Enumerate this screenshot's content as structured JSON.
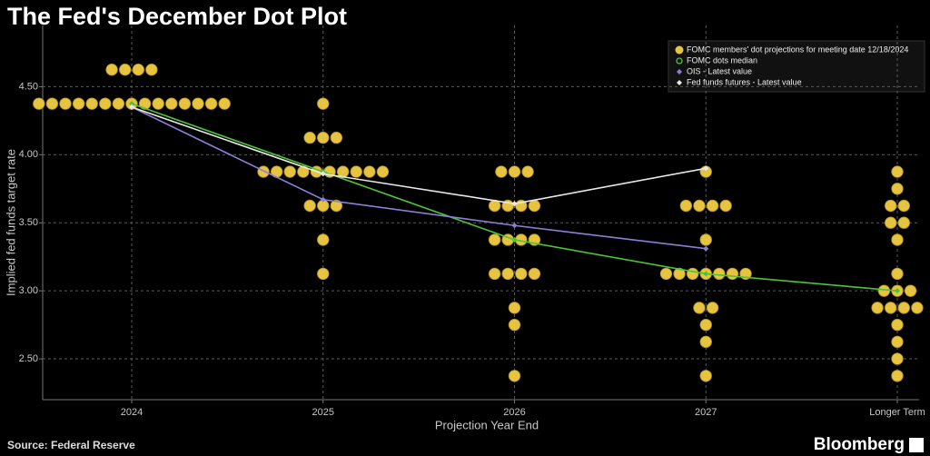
{
  "chart_data": {
    "type": "dot-plot",
    "title": "The Fed's December Dot Plot",
    "x_label": "Projection Year End",
    "y_label": "Implied fed funds target rate",
    "source": "Source: Federal Reserve",
    "brand": "Bloomberg",
    "categories": [
      "2024",
      "2025",
      "2026",
      "2027",
      "Longer Term"
    ],
    "ylim": [
      2.2,
      4.95
    ],
    "yticks": [
      {
        "value": 2.5,
        "label": "2.50"
      },
      {
        "value": 3,
        "label": "3.00"
      },
      {
        "value": 3.5,
        "label": "3.50"
      },
      {
        "value": 4,
        "label": "4.00"
      },
      {
        "value": 4.5,
        "label": "4.50"
      }
    ],
    "grid": true,
    "legend": "top-right",
    "dots": {
      "name": "FOMC members' dot projections for meeting date 12/18/2024",
      "color": "#e6c440",
      "points": [
        {
          "category": "2024",
          "rate": 4.625,
          "count": 4
        },
        {
          "category": "2024",
          "rate": 4.375,
          "count": 15
        },
        {
          "category": "2025",
          "rate": 4.375,
          "count": 1
        },
        {
          "category": "2025",
          "rate": 4.125,
          "count": 3
        },
        {
          "category": "2025",
          "rate": 3.875,
          "count": 10
        },
        {
          "category": "2025",
          "rate": 3.625,
          "count": 3
        },
        {
          "category": "2025",
          "rate": 3.375,
          "count": 1
        },
        {
          "category": "2025",
          "rate": 3.125,
          "count": 1
        },
        {
          "category": "2026",
          "rate": 3.875,
          "count": 3
        },
        {
          "category": "2026",
          "rate": 3.625,
          "count": 4
        },
        {
          "category": "2026",
          "rate": 3.375,
          "count": 4
        },
        {
          "category": "2026",
          "rate": 3.125,
          "count": 4
        },
        {
          "category": "2026",
          "rate": 2.875,
          "count": 1
        },
        {
          "category": "2026",
          "rate": 2.75,
          "count": 1
        },
        {
          "category": "2026",
          "rate": 2.375,
          "count": 1
        },
        {
          "category": "2027",
          "rate": 3.875,
          "count": 1
        },
        {
          "category": "2027",
          "rate": 3.625,
          "count": 4
        },
        {
          "category": "2027",
          "rate": 3.375,
          "count": 1
        },
        {
          "category": "2027",
          "rate": 3.125,
          "count": 7
        },
        {
          "category": "2027",
          "rate": 2.875,
          "count": 2
        },
        {
          "category": "2027",
          "rate": 2.75,
          "count": 1
        },
        {
          "category": "2027",
          "rate": 2.625,
          "count": 1
        },
        {
          "category": "2027",
          "rate": 2.375,
          "count": 1
        },
        {
          "category": "Longer Term",
          "rate": 3.875,
          "count": 1
        },
        {
          "category": "Longer Term",
          "rate": 3.75,
          "count": 1
        },
        {
          "category": "Longer Term",
          "rate": 3.625,
          "count": 2
        },
        {
          "category": "Longer Term",
          "rate": 3.5,
          "count": 2
        },
        {
          "category": "Longer Term",
          "rate": 3.375,
          "count": 1
        },
        {
          "category": "Longer Term",
          "rate": 3.125,
          "count": 1
        },
        {
          "category": "Longer Term",
          "rate": 3.0,
          "count": 3
        },
        {
          "category": "Longer Term",
          "rate": 2.875,
          "count": 4
        },
        {
          "category": "Longer Term",
          "rate": 2.75,
          "count": 1
        },
        {
          "category": "Longer Term",
          "rate": 2.625,
          "count": 1
        },
        {
          "category": "Longer Term",
          "rate": 2.5,
          "count": 1
        },
        {
          "category": "Longer Term",
          "rate": 2.375,
          "count": 1
        }
      ]
    },
    "series": [
      {
        "name": "FOMC dots median",
        "color": "#4cc437",
        "values": [
          4.375,
          3.875,
          3.375,
          3.125,
          3.0
        ]
      },
      {
        "name": "OIS - Latest value",
        "color": "#8b80d8",
        "values": [
          4.35,
          3.67,
          3.48,
          3.31,
          null
        ]
      },
      {
        "name": "Fed funds futures - Latest value",
        "color": "#e8e8e8",
        "values": [
          4.35,
          3.86,
          3.64,
          3.9,
          null
        ]
      }
    ]
  }
}
